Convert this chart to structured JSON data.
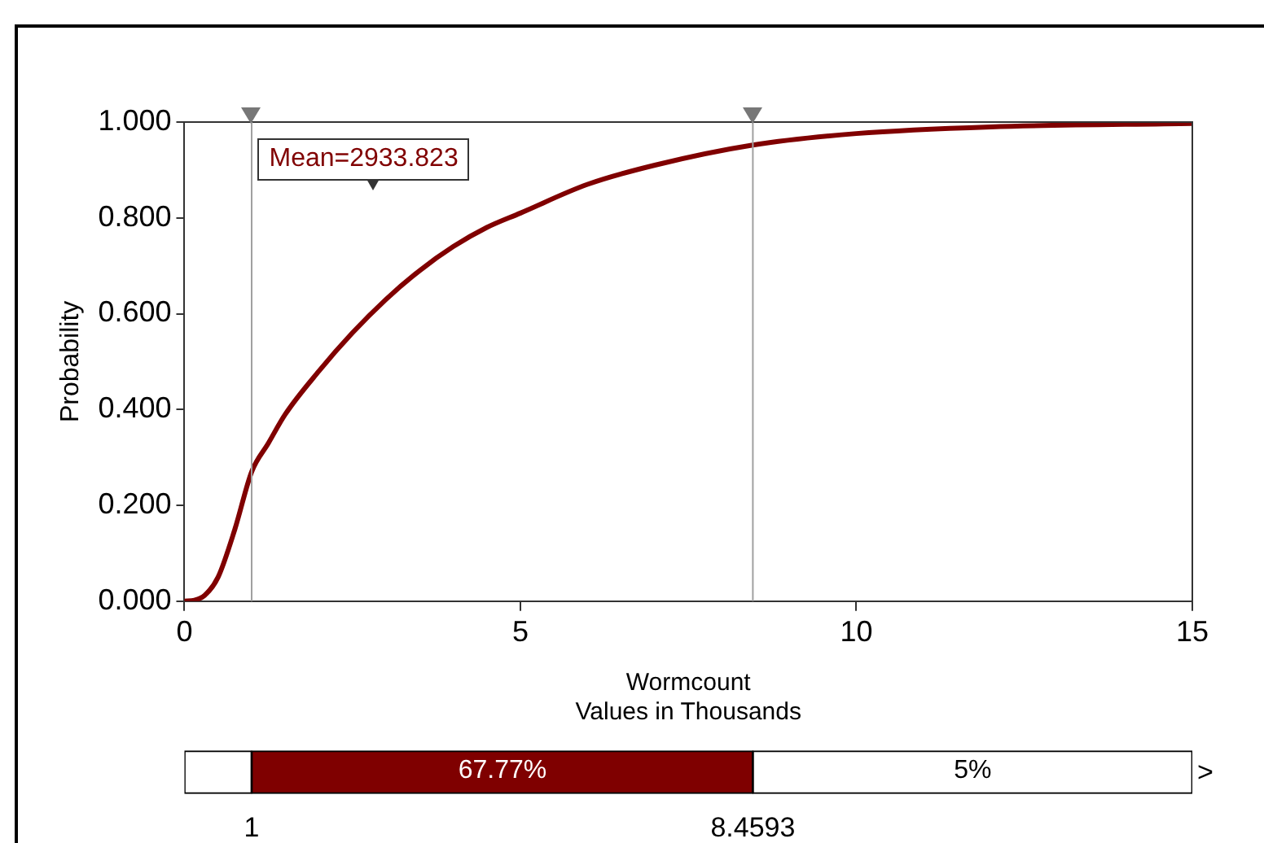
{
  "chart_data": [
    {
      "type": "line",
      "xlabel": "Wormcount\nValues in Thousands",
      "ylabel": "Probability",
      "x": [
        0,
        0.15,
        0.3,
        0.5,
        0.75,
        1,
        1.25,
        1.5,
        2,
        2.5,
        3,
        3.5,
        4,
        4.5,
        5,
        6,
        7,
        8.4593,
        10,
        12,
        15
      ],
      "series": [
        {
          "color": "#800000",
          "values": [
            0,
            0.002,
            0.012,
            0.05,
            0.15,
            0.27,
            0.33,
            0.39,
            0.48,
            0.56,
            0.63,
            0.69,
            0.74,
            0.78,
            0.81,
            0.87,
            0.91,
            0.952,
            0.976,
            0.99,
            0.997
          ]
        }
      ],
      "xlim": [
        0,
        15
      ],
      "xticks": [
        0,
        5,
        10,
        15
      ],
      "ylim": [
        0,
        1
      ],
      "yticks": [
        {
          "value": 0,
          "label": "0.000"
        },
        {
          "value": 0.2,
          "label": "0.200"
        },
        {
          "value": 0.4,
          "label": "0.400"
        },
        {
          "value": 0.6,
          "label": "0.600"
        },
        {
          "value": 0.8,
          "label": "0.800"
        },
        {
          "value": 1,
          "label": "1.000"
        }
      ],
      "ref_lines": [
        {
          "axis": "x",
          "value": 1,
          "color": "#a0a0a0"
        },
        {
          "axis": "x",
          "value": 8.4593,
          "color": "#a0a0a0"
        }
      ],
      "annotations": [
        "Mean=2933.823"
      ],
      "grid": false,
      "legend": false,
      "marker": "none",
      "line_style": "solid"
    },
    {
      "type": "bar",
      "orientation": "horizontal",
      "stacked": true,
      "categories": [
        null
      ],
      "series": [
        {
          "color": "#ffffff",
          "values": [
            1
          ]
        },
        {
          "color": "#7f0000",
          "values": [
            7.4593
          ]
        },
        {
          "color": "#ffffff",
          "values": [
            6.5407
          ]
        }
      ],
      "xlim": [
        0,
        15
      ],
      "xticks": [
        1,
        8.4593
      ],
      "annotations": [
        "67.77%",
        "5%",
        ">"
      ],
      "grid": false,
      "legend": false
    }
  ]
}
